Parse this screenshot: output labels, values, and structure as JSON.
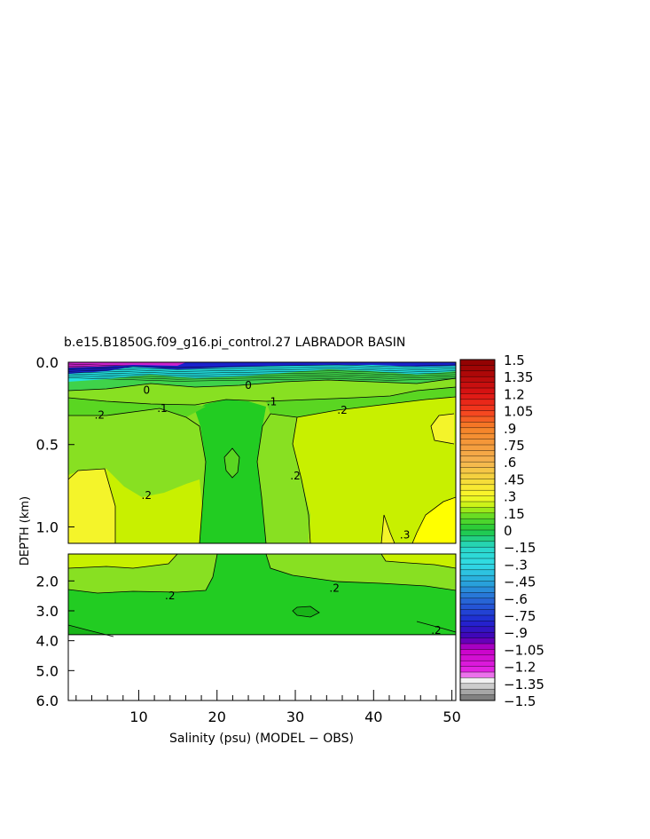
{
  "chart_data": {
    "type": "heatmap",
    "title": "b.e15.B1850G.f09_g16.pi_control.27 LABRADOR BASIN",
    "xlabel": "Salinity (psu) (MODEL − OBS)",
    "ylabel": "DEPTH (km)",
    "xlim": [
      1,
      50.5
    ],
    "x_ticks": [
      "10",
      "20",
      "30",
      "40",
      "50"
    ],
    "x_tick_values": [
      10,
      20,
      30,
      40,
      50
    ],
    "upper_panel": {
      "ylim": [
        0.0,
        1.1
      ],
      "y_ticks": [
        "0.0",
        "0.5",
        "1.0"
      ],
      "y_tick_values": [
        0.0,
        0.5,
        1.0
      ]
    },
    "lower_panel": {
      "ylim": [
        1.1,
        6.0
      ],
      "y_ticks": [
        "2.0",
        "3.0",
        "4.0",
        "5.0",
        "6.0"
      ],
      "y_tick_values": [
        2.0,
        3.0,
        4.0,
        5.0,
        6.0
      ],
      "data_bottom": 3.8
    },
    "contour_labels_upper": [
      {
        "text": "0",
        "x": 11,
        "y": 0.17
      },
      {
        "text": "0",
        "x": 24,
        "y": 0.14
      },
      {
        "text": ".1",
        "x": 13,
        "y": 0.28
      },
      {
        "text": ".1",
        "x": 27,
        "y": 0.24
      },
      {
        "text": ".2",
        "x": 5,
        "y": 0.32
      },
      {
        "text": ".2",
        "x": 36,
        "y": 0.29
      },
      {
        "text": ".2",
        "x": 11,
        "y": 0.81
      },
      {
        "text": ".2",
        "x": 30,
        "y": 0.69
      },
      {
        "text": ".3",
        "x": 44,
        "y": 1.05
      }
    ],
    "contour_labels_lower": [
      {
        "text": ".2",
        "x": 14,
        "y": 2.5
      },
      {
        "text": ".2",
        "x": 35,
        "y": 2.25
      },
      {
        "text": ".2",
        "x": 48,
        "y": 3.65
      }
    ],
    "colorbar": {
      "tick_labels": [
        "1.5",
        "1.35",
        "1.2",
        "1.05",
        ".9",
        ".75",
        ".6",
        ".45",
        ".3",
        ".15",
        "0",
        "−.15",
        "−.3",
        "−.45",
        "−.6",
        "−.75",
        "−.9",
        "−1.05",
        "−1.2",
        "−1.35",
        "−1.5"
      ],
      "tick_values": [
        1.5,
        1.35,
        1.2,
        1.05,
        0.9,
        0.75,
        0.6,
        0.45,
        0.3,
        0.15,
        0,
        -0.15,
        -0.3,
        -0.45,
        -0.6,
        -0.75,
        -0.9,
        -1.05,
        -1.2,
        -1.35,
        -1.5
      ],
      "range": [
        -1.5,
        1.5
      ]
    },
    "colors": {
      "field_green": "#22cc22",
      "field_lightgreen": "#88e022",
      "field_yellowgreen": "#c8f000",
      "field_yellow": "#f4f42a",
      "field_brightyellow": "#ffff00",
      "surface_cyan": "#22e0e0",
      "surface_blue": "#1a22cc",
      "surface_magenta": "#cc22cc"
    }
  }
}
